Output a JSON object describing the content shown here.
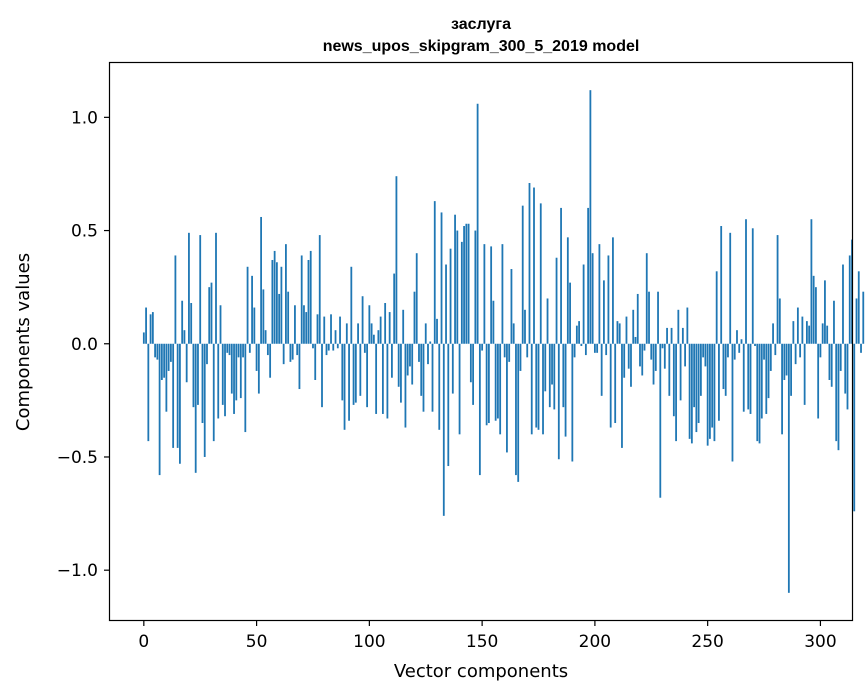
{
  "chart_data": {
    "type": "bar",
    "title": "заслуга",
    "subtitle": "news_upos_skipgram_300_5_2019 model",
    "xlabel": "Vector components",
    "ylabel": "Components values",
    "xlim": [
      -15,
      314
    ],
    "ylim": [
      -1.22,
      1.24
    ],
    "xticks": [
      0,
      50,
      100,
      150,
      200,
      250,
      300
    ],
    "yticks": [
      -1.0,
      -0.5,
      0.0,
      0.5,
      1.0
    ],
    "ytick_labels": [
      "−1.0",
      "−0.5",
      "0.0",
      "0.5",
      "1.0"
    ],
    "bar_color": "#1f77b4",
    "values": [
      0.05,
      0.16,
      -0.43,
      0.13,
      0.14,
      -0.06,
      -0.07,
      -0.58,
      -0.16,
      -0.15,
      -0.3,
      -0.12,
      -0.08,
      -0.46,
      0.39,
      -0.46,
      -0.53,
      0.19,
      0.06,
      -0.17,
      0.49,
      0.18,
      -0.28,
      -0.57,
      -0.27,
      0.48,
      -0.35,
      -0.5,
      -0.09,
      0.25,
      0.27,
      -0.43,
      0.49,
      -0.33,
      0.17,
      -0.27,
      -0.32,
      -0.04,
      -0.05,
      -0.22,
      -0.31,
      -0.25,
      -0.06,
      -0.24,
      -0.06,
      -0.39,
      0.34,
      -0.04,
      0.3,
      0.16,
      -0.12,
      -0.22,
      0.56,
      0.24,
      0.06,
      -0.05,
      -0.15,
      0.37,
      0.41,
      0.36,
      0.22,
      0.34,
      -0.09,
      0.44,
      0.23,
      -0.08,
      -0.07,
      0.17,
      -0.05,
      -0.2,
      0.39,
      0.17,
      0.14,
      0.37,
      0.41,
      -0.02,
      -0.16,
      0.13,
      0.48,
      -0.28,
      0.12,
      -0.05,
      -0.03,
      0.13,
      -0.03,
      0.06,
      -0.02,
      0.12,
      -0.25,
      -0.38,
      0.09,
      -0.34,
      0.34,
      -0.27,
      -0.26,
      0.09,
      -0.23,
      0.21,
      -0.04,
      -0.28,
      0.17,
      0.09,
      0.04,
      -0.31,
      0.06,
      0.12,
      -0.31,
      0.18,
      -0.33,
      0.14,
      -0.15,
      0.31,
      0.74,
      -0.19,
      -0.26,
      0.15,
      -0.37,
      -0.14,
      -0.1,
      -0.18,
      0.23,
      0.4,
      -0.08,
      -0.23,
      -0.3,
      0.09,
      -0.09,
      0.01,
      -0.3,
      0.63,
      0.11,
      -0.38,
      0.58,
      -0.76,
      0.35,
      -0.54,
      0.42,
      -0.22,
      0.57,
      0.5,
      -0.4,
      0.45,
      0.52,
      0.53,
      0.53,
      -0.17,
      -0.27,
      0.5,
      1.06,
      -0.58,
      -0.03,
      0.44,
      -0.36,
      -0.35,
      0.43,
      0.19,
      -0.34,
      -0.33,
      -0.4,
      0.44,
      -0.06,
      -0.48,
      -0.08,
      0.33,
      0.09,
      -0.58,
      -0.61,
      -0.12,
      0.61,
      0.15,
      -0.06,
      0.71,
      -0.4,
      0.69,
      -0.37,
      -0.38,
      0.62,
      -0.4,
      -0.21,
      0.2,
      -0.28,
      -0.18,
      -0.29,
      0.38,
      -0.51,
      0.6,
      -0.28,
      -0.41,
      0.47,
      0.27,
      -0.52,
      -0.06,
      0.08,
      0.1,
      -0.01,
      0.35,
      -0.05,
      0.6,
      1.12,
      0.4,
      -0.04,
      -0.04,
      0.44,
      -0.23,
      0.28,
      -0.05,
      0.39,
      -0.37,
      0.47,
      -0.35,
      0.1,
      0.09,
      -0.46,
      -0.15,
      0.12,
      -0.11,
      -0.19,
      0.15,
      0.03,
      0.22,
      -0.1,
      -0.14,
      -0.03,
      0.4,
      0.23,
      -0.07,
      -0.18,
      -0.12,
      0.23,
      -0.68,
      -0.02,
      -0.11,
      0.07,
      -0.23,
      0.07,
      -0.32,
      -0.43,
      0.15,
      -0.25,
      0.07,
      -0.1,
      0.16,
      -0.42,
      -0.44,
      -0.28,
      -0.39,
      -0.35,
      -0.23,
      -0.06,
      -0.1,
      -0.45,
      -0.42,
      -0.37,
      -0.43,
      0.32,
      -0.34,
      0.52,
      -0.2,
      -0.23,
      -0.06,
      0.49,
      -0.52,
      -0.07,
      0.06,
      -0.04,
      0.02,
      -0.3,
      0.55,
      -0.29,
      -0.31,
      0.51,
      -0.01,
      -0.43,
      -0.44,
      -0.33,
      -0.07,
      -0.31,
      -0.24,
      -0.12,
      0.09,
      -0.05,
      0.48,
      0.2,
      -0.4,
      -0.16,
      -0.14,
      -1.1,
      -0.23,
      0.1,
      -0.09,
      0.16,
      -0.06,
      0.12,
      -0.27,
      0.1,
      0.08,
      0.55,
      0.3,
      0.25,
      -0.33,
      -0.06,
      0.09,
      0.28,
      0.08,
      -0.16,
      -0.19,
      0.19,
      -0.43,
      -0.47,
      -0.12,
      0.35,
      -0.22,
      -0.29,
      0.39,
      0.46,
      -0.74,
      0.2,
      0.32,
      -0.04,
      0.23
    ]
  }
}
